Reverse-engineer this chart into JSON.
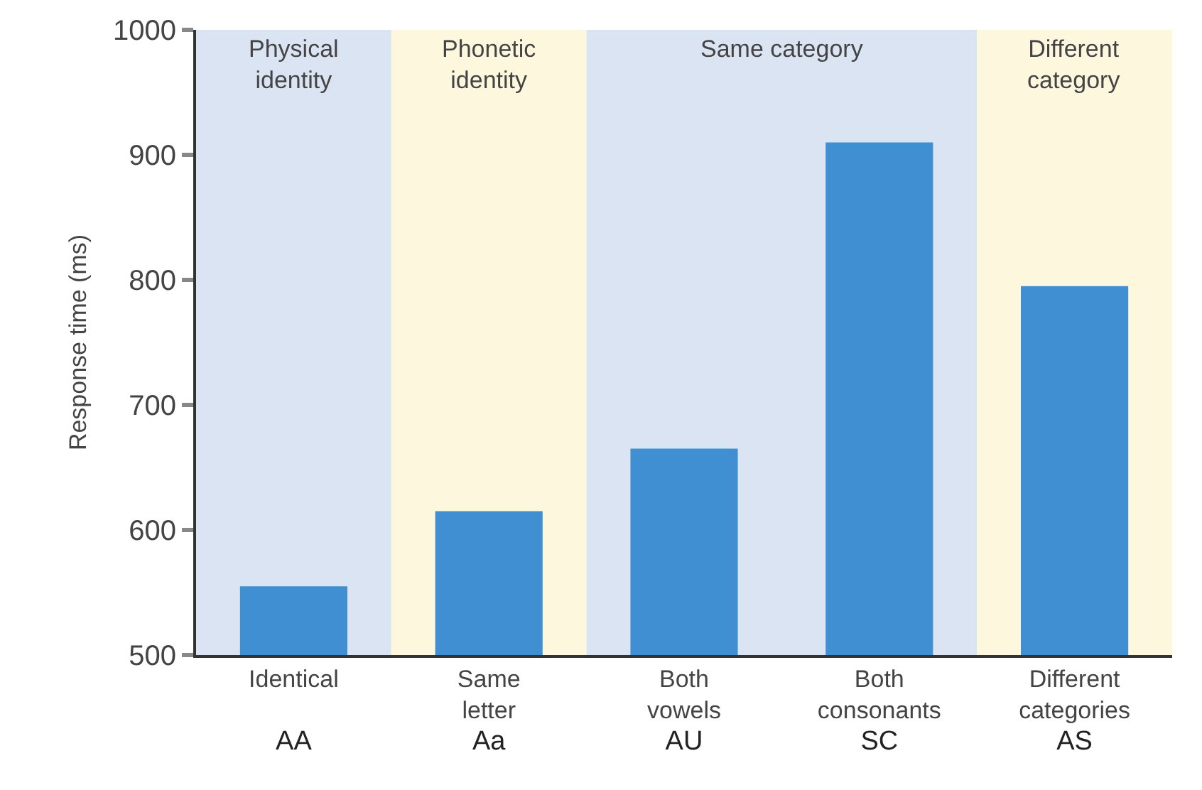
{
  "chart_data": {
    "type": "bar",
    "ylabel": "Response time (ms)",
    "categories": [
      "Identical\nAA",
      "Same\nletter\nAa",
      "Both\nvowels\nAU",
      "Both\nconsonants\nSC",
      "Different\ncategories\nAS"
    ],
    "values": [
      555,
      615,
      665,
      910,
      795
    ],
    "color": "#3f8fd2",
    "ylim": [
      500,
      1000
    ],
    "yticks": [
      500,
      600,
      700,
      800,
      900,
      1000
    ],
    "grid": false,
    "legend": false,
    "bands": [
      {
        "axis": "x",
        "from": "Identical\nAA",
        "to": "Identical\nAA",
        "label": "Physical\nidentity",
        "color": "#dbe4f3"
      },
      {
        "axis": "x",
        "from": "Same\nletter\nAa",
        "to": "Same\nletter\nAa",
        "label": "Phonetic\nidentity",
        "color": "#fdf8dd"
      },
      {
        "axis": "x",
        "from": "Both\nvowels\nAU",
        "to": "Both\nconsonants\nSC",
        "label": "Same category",
        "color": "#dbe4f3"
      },
      {
        "axis": "x",
        "from": "Different\ncategories\nAS",
        "to": "Different\ncategories\nAS",
        "label": "Different\ncategory",
        "color": "#fdf8dd"
      }
    ]
  }
}
